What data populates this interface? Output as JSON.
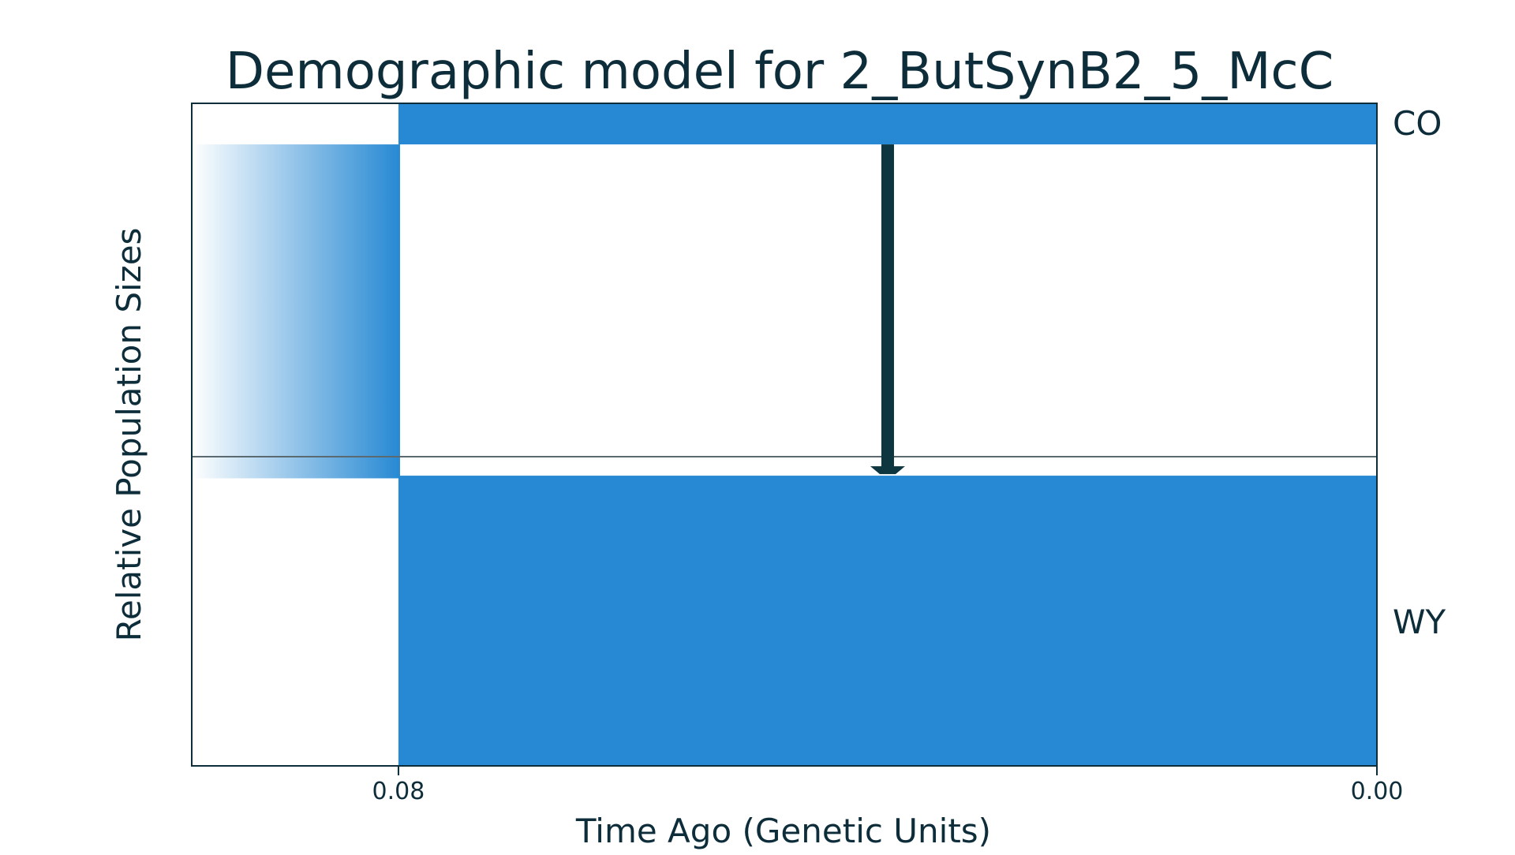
{
  "chart_data": {
    "type": "area",
    "title": "Demographic model for 2_ButSynB2_5_McC",
    "xlabel": "Time Ago (Genetic Units)",
    "ylabel": "Relative Population Sizes",
    "x_ticks": [
      {
        "value": 0.08,
        "label": "0.08"
      },
      {
        "value": 0.0,
        "label": "0.00"
      }
    ],
    "x_reversed": true,
    "xlim": [
      0.0,
      0.0969
    ],
    "split_time": 0.08,
    "ancestral_population": {
      "relative_size": 0.504,
      "style": "gradient-fade-toward-past"
    },
    "populations": [
      {
        "label": "CO",
        "relative_size": 0.062,
        "position": "top"
      },
      {
        "label": "WY",
        "relative_size": 0.438,
        "position": "bottom"
      }
    ],
    "migration_arrows": [
      {
        "from": "CO",
        "to": "WY",
        "time": 0.04
      }
    ],
    "colors": {
      "population_fill": "#2789d3",
      "arrow": "#0e3640",
      "frame": "#0e2d3a",
      "divider_line": "#5a6a70",
      "text": "#0e2d3a"
    }
  }
}
